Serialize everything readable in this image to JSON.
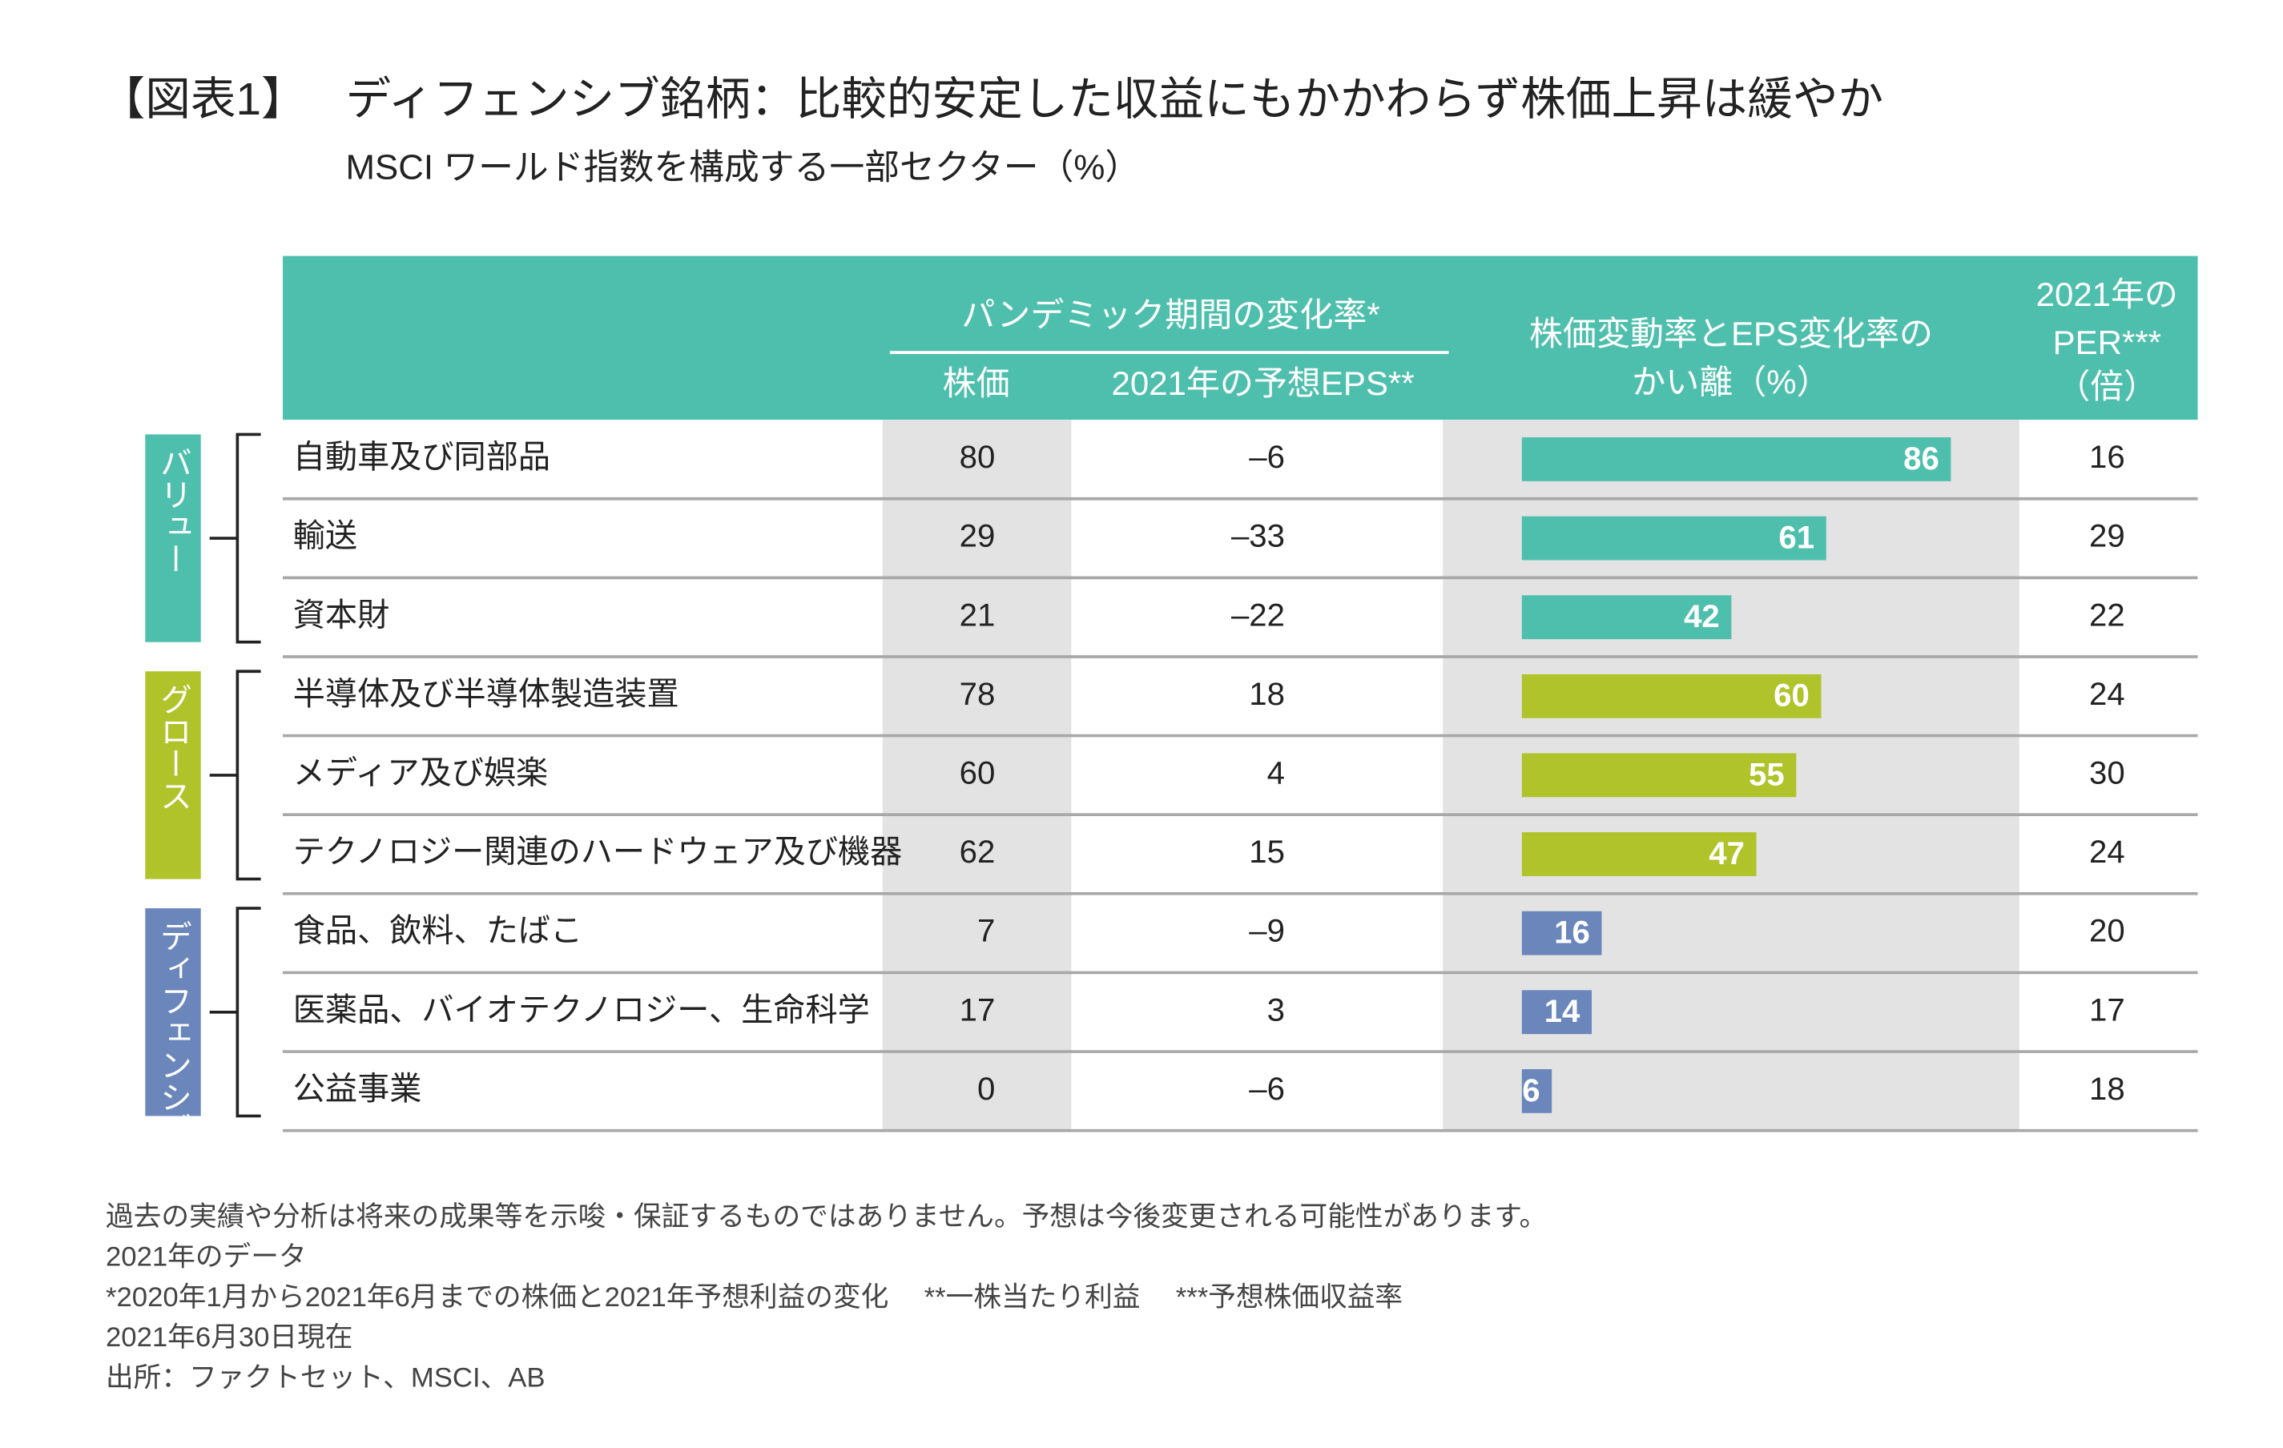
{
  "header": {
    "label": "【図表1】",
    "title": "ディフェンシブ銘柄：比較的安定した収益にもかかわらず株価上昇は緩やか",
    "subtitle": "MSCI ワールド指数を構成する一部セクター（%）"
  },
  "table": {
    "columns": {
      "group": "パンデミック期間の変化率*",
      "price": "株価",
      "eps": "2021年の予想EPS**",
      "gap": [
        "株価変動率とEPS変化率の",
        "かい離（%）"
      ],
      "per": [
        "2021年の",
        "PER***",
        "（倍）"
      ]
    },
    "groups": [
      {
        "name": "バリュー",
        "color": "#4fbfad"
      },
      {
        "name": "グロース",
        "color": "#b0c32a"
      },
      {
        "name": "ディフェンシブ",
        "color": "#6a86bb"
      }
    ],
    "rows": [
      {
        "group": 0,
        "name": "自動車及び同部品",
        "price": 80,
        "eps": "–6",
        "gap": 86,
        "per": 16
      },
      {
        "group": 0,
        "name": "輸送",
        "price": 29,
        "eps": "–33",
        "gap": 61,
        "per": 29
      },
      {
        "group": 0,
        "name": "資本財",
        "price": 21,
        "eps": "–22",
        "gap": 42,
        "per": 22
      },
      {
        "group": 1,
        "name": "半導体及び半導体製造装置",
        "price": 78,
        "eps": "18",
        "gap": 60,
        "per": 24
      },
      {
        "group": 1,
        "name": "メディア及び娯楽",
        "price": 60,
        "eps": "4",
        "gap": 55,
        "per": 30
      },
      {
        "group": 1,
        "name": "テクノロジー関連のハードウェア及び機器",
        "price": 62,
        "eps": "15",
        "gap": 47,
        "per": 24
      },
      {
        "group": 2,
        "name": "食品、飲料、たばこ",
        "price": 7,
        "eps": "–9",
        "gap": 16,
        "per": 20
      },
      {
        "group": 2,
        "name": "医薬品、バイオテクノロジー、生命科学",
        "price": 17,
        "eps": "3",
        "gap": 14,
        "per": 17
      },
      {
        "group": 2,
        "name": "公益事業",
        "price": 0,
        "eps": "–6",
        "gap": 6,
        "per": 18
      }
    ]
  },
  "footnotes": [
    "過去の実績や分析は将来の成果等を示唆・保証するものではありません。予想は今後変更される可能性があります。",
    "2021年のデータ",
    "*2020年1月から2021年6月までの株価と2021年予想利益の変化　 **一株当たり利益　 ***予想株価収益率",
    "2021年6月30日現在",
    "出所：ファクトセット、MSCI、AB"
  ]
}
